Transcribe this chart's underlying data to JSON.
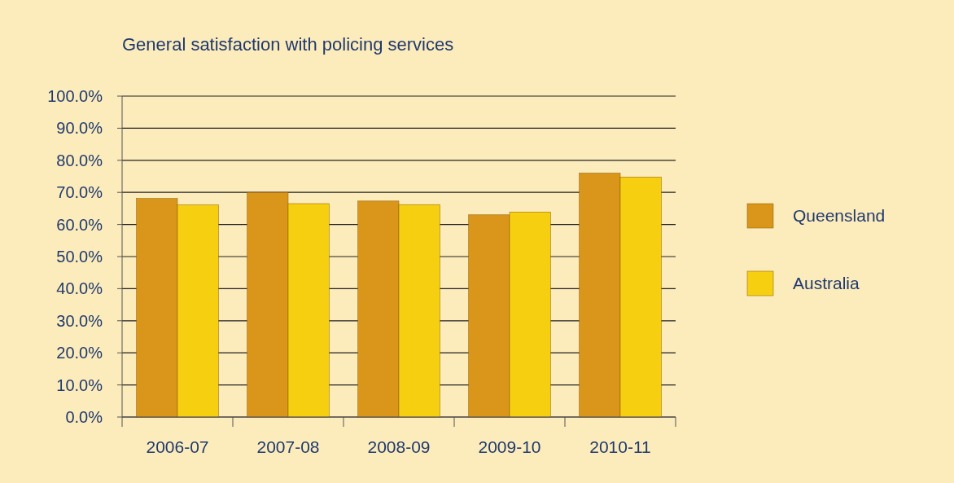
{
  "chart_data": {
    "type": "bar",
    "title": "General satisfaction with policing services",
    "categories": [
      "2006-07",
      "2007-08",
      "2008-09",
      "2009-10",
      "2010-11"
    ],
    "series": [
      {
        "name": "Queensland",
        "color": "#d9961a",
        "values": [
          68.1,
          70.0,
          67.3,
          63.0,
          76.0
        ]
      },
      {
        "name": "Australia",
        "color": "#f5cf10",
        "values": [
          66.1,
          66.5,
          66.2,
          63.9,
          74.8
        ]
      }
    ],
    "ylim": [
      0,
      100
    ],
    "yticks": [
      {
        "value": 0,
        "label": "0.0%"
      },
      {
        "value": 10,
        "label": "10.0%"
      },
      {
        "value": 20,
        "label": "20.0%"
      },
      {
        "value": 30,
        "label": "30.0%"
      },
      {
        "value": 40,
        "label": "40.0%"
      },
      {
        "value": 50,
        "label": "50.0%"
      },
      {
        "value": 60,
        "label": "60.0%"
      },
      {
        "value": 70,
        "label": "70.0%"
      },
      {
        "value": 80,
        "label": "80.0%"
      },
      {
        "value": 90,
        "label": "90.0%"
      },
      {
        "value": 100,
        "label": "100.0%"
      }
    ],
    "grid": "y",
    "legend": "right"
  }
}
